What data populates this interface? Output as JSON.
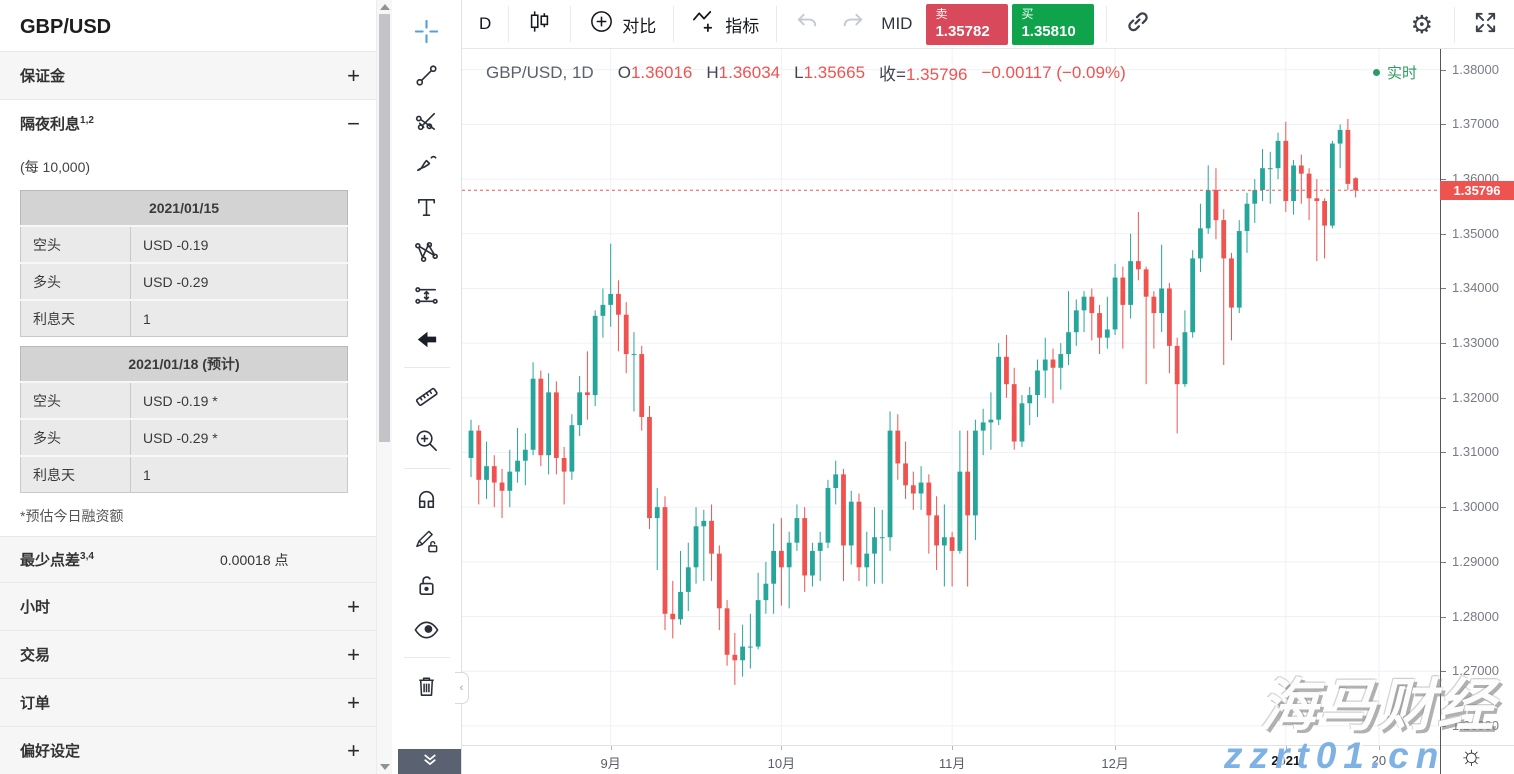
{
  "sidebar": {
    "title": "GBP/USD",
    "expand_glyph": "+",
    "collapse_glyph": "−",
    "margin": {
      "label": "保证金"
    },
    "overnight": {
      "label": "隔夜利息",
      "sup": "1,2",
      "unit": "(每 10,000)",
      "tables": [
        {
          "header": "2021/01/15",
          "rows": [
            [
              "空头",
              "USD -0.19"
            ],
            [
              "多头",
              "USD -0.29"
            ],
            [
              "利息天",
              "1"
            ]
          ]
        },
        {
          "header": "2021/01/18 (预计)",
          "rows": [
            [
              "空头",
              "USD -0.19 *"
            ],
            [
              "多头",
              "USD -0.29 *"
            ],
            [
              "利息天",
              "1"
            ]
          ]
        }
      ],
      "footnote": "*预估今日融资额"
    },
    "min_spread": {
      "label": "最少点差",
      "sup": "3,4",
      "value": "0.00018 点"
    },
    "more_sections": [
      "小时",
      "交易",
      "订单",
      "偏好设定"
    ]
  },
  "drawing_toolbar": {
    "groups": [
      [
        "crosshair",
        "trend-line",
        "pitchfork",
        "brush",
        "text",
        "pattern",
        "forecast",
        "arrow-left"
      ],
      [
        "ruler",
        "zoom-in"
      ],
      [
        "magnet",
        "draw-lock",
        "lock",
        "eye"
      ],
      [
        "trash"
      ]
    ]
  },
  "top_toolbar": {
    "interval": "D",
    "compare": "对比",
    "indicators": "指标",
    "mid": "MID",
    "sell": {
      "label": "卖",
      "price": "1.35782"
    },
    "buy": {
      "label": "买",
      "price": "1.35810"
    }
  },
  "legend": {
    "symbol": "GBP/USD, 1D",
    "open_label": "O",
    "open": "1.36016",
    "high_label": "H",
    "high": "1.36034",
    "low_label": "L",
    "low": "1.35665",
    "close_label": "收=",
    "close": "1.35796",
    "change": "−0.00117 (−0.09%)"
  },
  "realtime_label": "实时",
  "watermark": {
    "line1": "海马财经",
    "line2": "zzrt01.cn"
  },
  "colors": {
    "up": "#26a69a",
    "down": "#ef5350",
    "sell_bg": "#d8495c",
    "buy_bg": "#0fa44c",
    "realtime": "#2e9c62",
    "last_price_bg": "#ef5350",
    "grid": "#eef1f8"
  },
  "chart_data": {
    "type": "candlestick",
    "symbol": "GBP/USD",
    "interval": "1D",
    "title": "GBP/USD, 1D",
    "ylabel": "price",
    "price_top": 1.3838,
    "price_bottom": 1.2565,
    "grid_on": true,
    "last_price": 1.35796,
    "last_price_label": "1.35796",
    "y_ticks": [
      "1.38000",
      "1.37000",
      "1.36000",
      "1.35000",
      "1.34000",
      "1.33000",
      "1.32000",
      "1.31000",
      "1.30000",
      "1.29000",
      "1.28000",
      "1.27000",
      "1.26000"
    ],
    "time_labels": [
      {
        "index": 18,
        "text": "9月"
      },
      {
        "index": 40,
        "text": "10月"
      },
      {
        "index": 62,
        "text": "11月"
      },
      {
        "index": 83,
        "text": "12月"
      },
      {
        "index": 105,
        "text": "2021",
        "bold": true
      },
      {
        "index": 117,
        "text": "20"
      }
    ],
    "grid_indices": [
      18,
      40,
      62,
      83,
      105,
      117
    ],
    "candles": [
      [
        1.309,
        1.316,
        1.3055,
        1.314
      ],
      [
        1.314,
        1.315,
        1.3005,
        1.305
      ],
      [
        1.305,
        1.312,
        1.3015,
        1.3075
      ],
      [
        1.3075,
        1.3095,
        1.3,
        1.3045
      ],
      [
        1.3045,
        1.307,
        1.298,
        1.303
      ],
      [
        1.303,
        1.3105,
        1.3,
        1.3065
      ],
      [
        1.3065,
        1.3145,
        1.3045,
        1.3085
      ],
      [
        1.3085,
        1.3135,
        1.304,
        1.3105
      ],
      [
        1.3105,
        1.3265,
        1.3095,
        1.3235
      ],
      [
        1.3235,
        1.325,
        1.3075,
        1.3095
      ],
      [
        1.3095,
        1.3245,
        1.306,
        1.321
      ],
      [
        1.321,
        1.323,
        1.306,
        1.309
      ],
      [
        1.309,
        1.311,
        1.3005,
        1.3065
      ],
      [
        1.3065,
        1.317,
        1.305,
        1.315
      ],
      [
        1.315,
        1.324,
        1.313,
        1.321
      ],
      [
        1.321,
        1.3285,
        1.316,
        1.3205
      ],
      [
        1.3205,
        1.336,
        1.3185,
        1.335
      ],
      [
        1.335,
        1.34,
        1.331,
        1.337
      ],
      [
        1.337,
        1.3482,
        1.333,
        1.339
      ],
      [
        1.339,
        1.3415,
        1.3285,
        1.3352
      ],
      [
        1.3352,
        1.3375,
        1.3245,
        1.328
      ],
      [
        1.328,
        1.332,
        1.3175,
        1.328
      ],
      [
        1.328,
        1.3295,
        1.314,
        1.3165
      ],
      [
        1.3165,
        1.3185,
        1.296,
        1.298
      ],
      [
        1.298,
        1.3035,
        1.2885,
        1.3
      ],
      [
        1.3,
        1.302,
        1.2775,
        1.2805
      ],
      [
        1.2805,
        1.2865,
        1.276,
        1.2795
      ],
      [
        1.2795,
        1.292,
        1.2785,
        1.2845
      ],
      [
        1.2845,
        1.2935,
        1.281,
        1.289
      ],
      [
        1.289,
        1.3,
        1.286,
        1.2965
      ],
      [
        1.2965,
        1.2995,
        1.2865,
        1.2975
      ],
      [
        1.2975,
        1.3005,
        1.2865,
        1.2915
      ],
      [
        1.2915,
        1.293,
        1.2775,
        1.2815
      ],
      [
        1.2815,
        1.283,
        1.271,
        1.273
      ],
      [
        1.273,
        1.277,
        1.2675,
        1.272
      ],
      [
        1.272,
        1.2785,
        1.269,
        1.2745
      ],
      [
        1.2745,
        1.2805,
        1.2705,
        1.2745
      ],
      [
        1.2745,
        1.288,
        1.274,
        1.283
      ],
      [
        1.283,
        1.29,
        1.2805,
        1.286
      ],
      [
        1.286,
        1.297,
        1.2805,
        1.292
      ],
      [
        1.292,
        1.298,
        1.282,
        1.289
      ],
      [
        1.289,
        1.2955,
        1.2815,
        1.2935
      ],
      [
        1.2935,
        1.3005,
        1.292,
        1.298
      ],
      [
        1.298,
        1.3,
        1.2845,
        1.2875
      ],
      [
        1.2875,
        1.2935,
        1.2855,
        1.292
      ],
      [
        1.292,
        1.2955,
        1.2865,
        1.2935
      ],
      [
        1.2935,
        1.305,
        1.2925,
        1.3035
      ],
      [
        1.3035,
        1.3085,
        1.3005,
        1.306
      ],
      [
        1.306,
        1.307,
        1.2865,
        1.293
      ],
      [
        1.293,
        1.303,
        1.2895,
        1.301
      ],
      [
        1.301,
        1.3025,
        1.2865,
        1.289
      ],
      [
        1.289,
        1.2955,
        1.2855,
        1.2915
      ],
      [
        1.2915,
        1.3,
        1.286,
        1.2945
      ],
      [
        1.2945,
        1.2995,
        1.286,
        1.2945
      ],
      [
        1.2945,
        1.3175,
        1.292,
        1.314
      ],
      [
        1.314,
        1.317,
        1.305,
        1.308
      ],
      [
        1.308,
        1.312,
        1.3015,
        1.304
      ],
      [
        1.304,
        1.3065,
        1.2995,
        1.3025
      ],
      [
        1.3025,
        1.3075,
        1.2995,
        1.3045
      ],
      [
        1.3045,
        1.306,
        1.2915,
        1.2985
      ],
      [
        1.2985,
        1.302,
        1.2885,
        1.293
      ],
      [
        1.293,
        1.3005,
        1.2855,
        1.2945
      ],
      [
        1.2945,
        1.2955,
        1.2855,
        1.292
      ],
      [
        1.292,
        1.314,
        1.2915,
        1.3065
      ],
      [
        1.3065,
        1.314,
        1.2855,
        1.2985
      ],
      [
        1.2985,
        1.316,
        1.294,
        1.314
      ],
      [
        1.314,
        1.318,
        1.3095,
        1.3155
      ],
      [
        1.3155,
        1.321,
        1.3105,
        1.316
      ],
      [
        1.316,
        1.33,
        1.315,
        1.3275
      ],
      [
        1.3275,
        1.3315,
        1.32,
        1.3225
      ],
      [
        1.3225,
        1.3255,
        1.3105,
        1.312
      ],
      [
        1.312,
        1.3205,
        1.311,
        1.319
      ],
      [
        1.319,
        1.322,
        1.315,
        1.3205
      ],
      [
        1.3205,
        1.327,
        1.3165,
        1.325
      ],
      [
        1.325,
        1.331,
        1.32,
        1.327
      ],
      [
        1.327,
        1.329,
        1.319,
        1.3255
      ],
      [
        1.3255,
        1.33,
        1.3215,
        1.328
      ],
      [
        1.328,
        1.3395,
        1.326,
        1.332
      ],
      [
        1.332,
        1.338,
        1.3295,
        1.336
      ],
      [
        1.336,
        1.3395,
        1.332,
        1.3385
      ],
      [
        1.3385,
        1.34,
        1.3305,
        1.3355
      ],
      [
        1.3355,
        1.337,
        1.328,
        1.331
      ],
      [
        1.331,
        1.3385,
        1.329,
        1.3325
      ],
      [
        1.3325,
        1.3445,
        1.3315,
        1.342
      ],
      [
        1.342,
        1.344,
        1.329,
        1.337
      ],
      [
        1.337,
        1.35,
        1.3345,
        1.345
      ],
      [
        1.345,
        1.354,
        1.3415,
        1.3435
      ],
      [
        1.3435,
        1.344,
        1.3225,
        1.3385
      ],
      [
        1.3385,
        1.3395,
        1.329,
        1.3355
      ],
      [
        1.3355,
        1.348,
        1.332,
        1.34
      ],
      [
        1.34,
        1.341,
        1.3245,
        1.3295
      ],
      [
        1.3295,
        1.331,
        1.3135,
        1.3225
      ],
      [
        1.3225,
        1.336,
        1.322,
        1.332
      ],
      [
        1.332,
        1.347,
        1.331,
        1.3455
      ],
      [
        1.3455,
        1.3555,
        1.343,
        1.351
      ],
      [
        1.351,
        1.3625,
        1.35,
        1.358
      ],
      [
        1.358,
        1.362,
        1.349,
        1.3525
      ],
      [
        1.3525,
        1.3545,
        1.326,
        1.3455
      ],
      [
        1.3455,
        1.3465,
        1.3305,
        1.3365
      ],
      [
        1.3365,
        1.3525,
        1.3355,
        1.3505
      ],
      [
        1.3505,
        1.3575,
        1.3465,
        1.3555
      ],
      [
        1.3555,
        1.36,
        1.352,
        1.358
      ],
      [
        1.358,
        1.3655,
        1.356,
        1.362
      ],
      [
        1.362,
        1.365,
        1.3555,
        1.362
      ],
      [
        1.362,
        1.3685,
        1.36,
        1.367
      ],
      [
        1.367,
        1.3705,
        1.354,
        1.356
      ],
      [
        1.356,
        1.3635,
        1.3535,
        1.3625
      ],
      [
        1.3625,
        1.3645,
        1.3555,
        1.361
      ],
      [
        1.361,
        1.362,
        1.3525,
        1.3565
      ],
      [
        1.3565,
        1.36,
        1.345,
        1.356
      ],
      [
        1.356,
        1.3565,
        1.3455,
        1.3515
      ],
      [
        1.3515,
        1.367,
        1.351,
        1.3665
      ],
      [
        1.3665,
        1.37,
        1.362,
        1.369
      ],
      [
        1.369,
        1.371,
        1.358,
        1.35913
      ],
      [
        1.36016,
        1.36034,
        1.35665,
        1.35796
      ]
    ]
  }
}
